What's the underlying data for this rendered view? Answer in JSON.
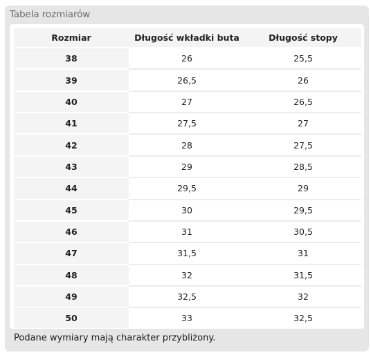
{
  "panel": {
    "title": "Tabela rozmiarów",
    "note": "Podane wymiary mają charakter przybliżony."
  },
  "table": {
    "headers": [
      "Rozmiar",
      "Długość wkładki buta",
      "Długość stopy"
    ],
    "rows": [
      [
        "38",
        "26",
        "25,5"
      ],
      [
        "39",
        "26,5",
        "26"
      ],
      [
        "40",
        "27",
        "26,5"
      ],
      [
        "41",
        "27,5",
        "27"
      ],
      [
        "42",
        "28",
        "27,5"
      ],
      [
        "43",
        "29",
        "28,5"
      ],
      [
        "44",
        "29,5",
        "29"
      ],
      [
        "45",
        "30",
        "29,5"
      ],
      [
        "46",
        "31",
        "30,5"
      ],
      [
        "47",
        "31,5",
        "31"
      ],
      [
        "48",
        "32",
        "31,5"
      ],
      [
        "49",
        "32,5",
        "32"
      ],
      [
        "50",
        "33",
        "32,5"
      ]
    ]
  },
  "colors": {
    "panel_bg": "#e6e6e6",
    "size_column_bg": "#f4f4f4",
    "row_divider": "#ececec"
  }
}
